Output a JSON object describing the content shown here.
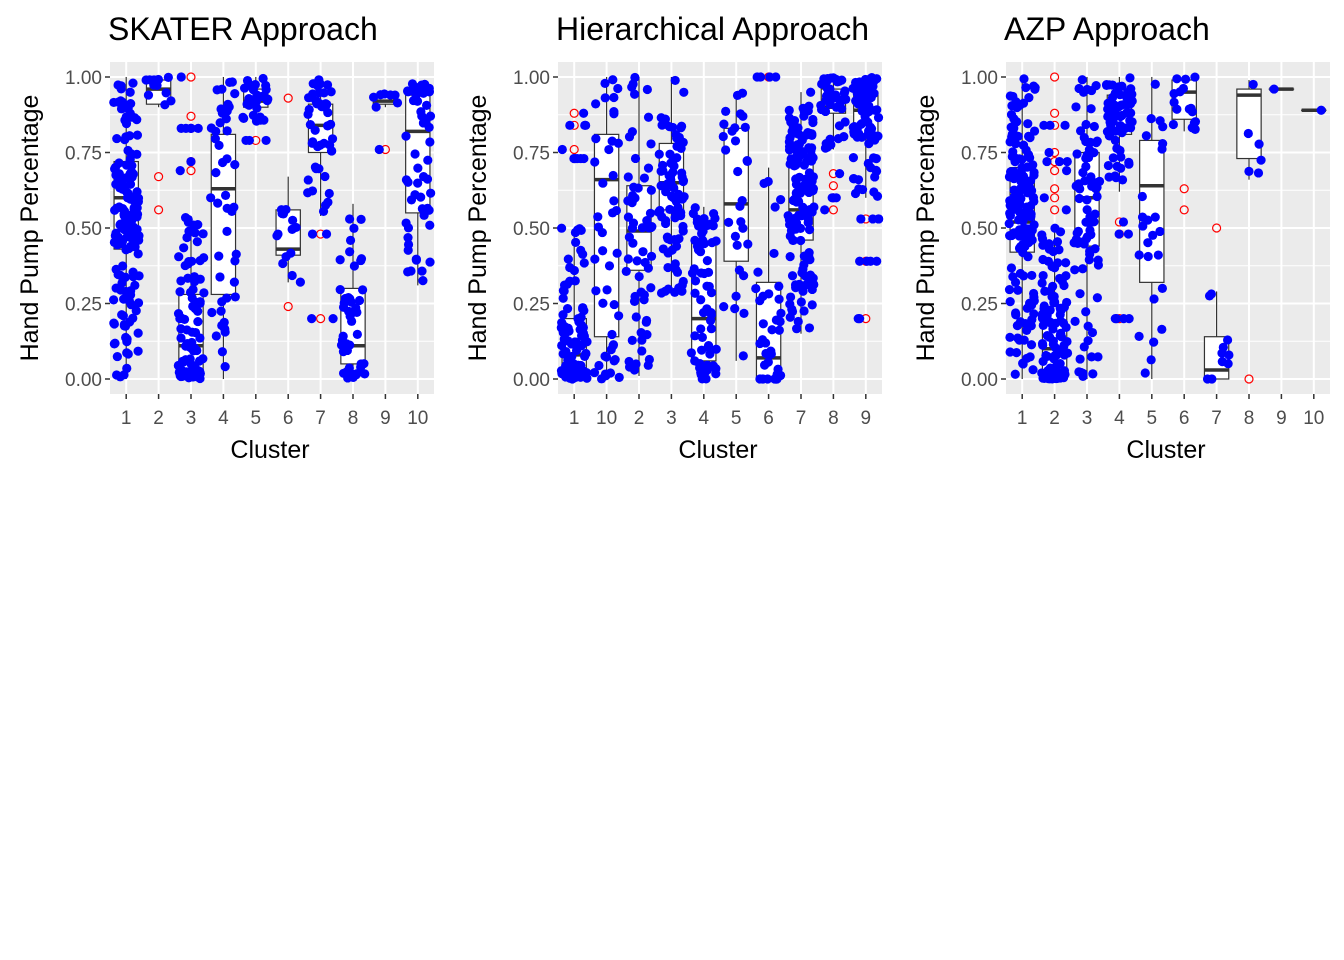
{
  "figure": {
    "colors": {
      "panel_background": "#ebebeb",
      "grid": "#ffffff",
      "point": "#0000ff",
      "outlier": "#ff0000",
      "box_line": "#333333",
      "box_fill": "#ffffff"
    }
  },
  "chart_data": [
    {
      "type": "boxplot",
      "title": "SKATER Approach",
      "xlabel": "Cluster",
      "ylabel": "Hand Pump Percentage",
      "ylim": [
        0,
        1
      ],
      "yticks": [
        "0.00",
        "0.25",
        "0.50",
        "0.75",
        "1.00"
      ],
      "grid": true,
      "categories": [
        "1",
        "2",
        "3",
        "4",
        "5",
        "6",
        "7",
        "8",
        "9",
        "10"
      ],
      "boxes": [
        {
          "cluster": "1",
          "min": 0.0,
          "q1": 0.43,
          "median": 0.6,
          "q3": 0.72,
          "max": 1.0,
          "outliers": [],
          "n_points": 160
        },
        {
          "cluster": "2",
          "min": 0.9,
          "q1": 0.91,
          "median": 0.96,
          "q3": 0.99,
          "max": 1.0,
          "outliers": [
            0.67,
            0.56
          ],
          "n_points": 12
        },
        {
          "cluster": "3",
          "min": 0.0,
          "q1": 0.03,
          "median": 0.11,
          "q3": 0.28,
          "max": 0.54,
          "outliers": [
            0.69,
            0.72,
            0.83,
            0.87,
            1.0
          ],
          "n_points": 90
        },
        {
          "cluster": "4",
          "min": 0.0,
          "q1": 0.28,
          "median": 0.63,
          "q3": 0.81,
          "max": 1.0,
          "outliers": [],
          "n_points": 45
        },
        {
          "cluster": "5",
          "min": 0.84,
          "q1": 0.9,
          "median": 0.92,
          "q3": 0.96,
          "max": 1.0,
          "outliers": [
            0.79
          ],
          "n_points": 30
        },
        {
          "cluster": "6",
          "min": 0.32,
          "q1": 0.41,
          "median": 0.43,
          "q3": 0.56,
          "max": 0.67,
          "outliers": [
            0.93,
            0.24
          ],
          "n_points": 14
        },
        {
          "cluster": "7",
          "min": 0.54,
          "q1": 0.75,
          "median": 0.84,
          "q3": 0.91,
          "max": 1.0,
          "outliers": [
            0.48,
            0.2
          ],
          "n_points": 50
        },
        {
          "cluster": "8",
          "min": 0.0,
          "q1": 0.05,
          "median": 0.11,
          "q3": 0.3,
          "max": 0.58,
          "outliers": [],
          "n_points": 45
        },
        {
          "cluster": "9",
          "min": 0.9,
          "q1": 0.91,
          "median": 0.92,
          "q3": 0.94,
          "max": 0.95,
          "outliers": [
            0.76
          ],
          "n_points": 8
        },
        {
          "cluster": "10",
          "min": 0.31,
          "q1": 0.55,
          "median": 0.82,
          "q3": 0.94,
          "max": 0.98,
          "outliers": [],
          "n_points": 55
        }
      ]
    },
    {
      "type": "boxplot",
      "title": "Hierarchical Approach",
      "xlabel": "Cluster",
      "ylabel": "Hand Pump Percentage",
      "ylim": [
        0,
        1
      ],
      "yticks": [
        "0.00",
        "0.25",
        "0.50",
        "0.75",
        "1.00"
      ],
      "grid": true,
      "categories": [
        "1",
        "10",
        "2",
        "3",
        "4",
        "5",
        "6",
        "7",
        "8",
        "9"
      ],
      "boxes": [
        {
          "cluster": "1",
          "min": 0.0,
          "q1": 0.03,
          "median": 0.08,
          "q3": 0.2,
          "max": 0.5,
          "outliers": [
            0.73,
            0.76,
            0.84,
            0.88
          ],
          "n_points": 110
        },
        {
          "cluster": "10",
          "min": 0.0,
          "q1": 0.14,
          "median": 0.66,
          "q3": 0.81,
          "max": 1.0,
          "outliers": [],
          "n_points": 45
        },
        {
          "cluster": "2",
          "min": 0.01,
          "q1": 0.36,
          "median": 0.49,
          "q3": 0.64,
          "max": 1.0,
          "outliers": [],
          "n_points": 60
        },
        {
          "cluster": "3",
          "min": 0.28,
          "q1": 0.56,
          "median": 0.65,
          "q3": 0.78,
          "max": 1.0,
          "outliers": [],
          "n_points": 80
        },
        {
          "cluster": "4",
          "min": 0.0,
          "q1": 0.06,
          "median": 0.2,
          "q3": 0.45,
          "max": 0.57,
          "outliers": [],
          "n_points": 70
        },
        {
          "cluster": "5",
          "min": 0.06,
          "q1": 0.39,
          "median": 0.58,
          "q3": 0.83,
          "max": 0.95,
          "outliers": [],
          "n_points": 30
        },
        {
          "cluster": "6",
          "min": 0.0,
          "q1": 0.0,
          "median": 0.07,
          "q3": 0.32,
          "max": 0.7,
          "outliers": [
            1.0
          ],
          "n_points": 40
        },
        {
          "cluster": "7",
          "min": 0.15,
          "q1": 0.46,
          "median": 0.56,
          "q3": 0.76,
          "max": 0.95,
          "outliers": [],
          "n_points": 130
        },
        {
          "cluster": "8",
          "min": 0.76,
          "q1": 0.88,
          "median": 0.9,
          "q3": 0.96,
          "max": 1.0,
          "outliers": [
            0.56,
            0.6,
            0.64,
            0.68
          ],
          "n_points": 45
        },
        {
          "cluster": "9",
          "min": 0.6,
          "q1": 0.8,
          "median": 0.89,
          "q3": 0.95,
          "max": 1.0,
          "outliers": [
            0.53,
            0.39,
            0.2
          ],
          "n_points": 85
        }
      ]
    },
    {
      "type": "boxplot",
      "title": "AZP Approach",
      "xlabel": "Cluster",
      "ylabel": "Hand Pump Percentage",
      "ylim": [
        0,
        1
      ],
      "yticks": [
        "0.00",
        "0.25",
        "0.50",
        "0.75",
        "1.00"
      ],
      "grid": true,
      "categories": [
        "1",
        "2",
        "3",
        "4",
        "5",
        "6",
        "7",
        "8",
        "9",
        "10"
      ],
      "boxes": [
        {
          "cluster": "1",
          "min": 0.0,
          "q1": 0.42,
          "median": 0.52,
          "q3": 0.7,
          "max": 1.0,
          "outliers": [],
          "n_points": 160
        },
        {
          "cluster": "2",
          "min": 0.0,
          "q1": 0.03,
          "median": 0.1,
          "q3": 0.24,
          "max": 0.5,
          "outliers": [
            0.56,
            0.6,
            0.63,
            0.69,
            0.72,
            0.75,
            0.84,
            0.88,
            1.0
          ],
          "n_points": 120
        },
        {
          "cluster": "3",
          "min": 0.0,
          "q1": 0.44,
          "median": 0.6,
          "q3": 0.75,
          "max": 1.0,
          "outliers": [],
          "n_points": 80
        },
        {
          "cluster": "4",
          "min": 0.62,
          "q1": 0.81,
          "median": 0.88,
          "q3": 0.94,
          "max": 1.0,
          "outliers": [
            0.52,
            0.48,
            0.2
          ],
          "n_points": 75
        },
        {
          "cluster": "5",
          "min": 0.0,
          "q1": 0.32,
          "median": 0.64,
          "q3": 0.79,
          "max": 1.0,
          "outliers": [],
          "n_points": 25
        },
        {
          "cluster": "6",
          "min": 0.82,
          "q1": 0.86,
          "median": 0.95,
          "q3": 0.99,
          "max": 1.0,
          "outliers": [
            0.63,
            0.56
          ],
          "n_points": 16
        },
        {
          "cluster": "7",
          "min": 0.0,
          "q1": 0.0,
          "median": 0.03,
          "q3": 0.14,
          "max": 0.29,
          "outliers": [
            0.5
          ],
          "n_points": 10
        },
        {
          "cluster": "8",
          "min": 0.66,
          "q1": 0.73,
          "median": 0.94,
          "q3": 0.96,
          "max": 0.99,
          "outliers": [
            0.0
          ],
          "n_points": 6
        },
        {
          "cluster": "9",
          "min": 0.96,
          "q1": 0.96,
          "median": 0.96,
          "q3": 0.96,
          "max": 0.96,
          "outliers": [],
          "n_points": 1
        },
        {
          "cluster": "10",
          "min": 0.89,
          "q1": 0.89,
          "median": 0.89,
          "q3": 0.89,
          "max": 0.89,
          "outliers": [],
          "n_points": 1
        }
      ]
    }
  ]
}
